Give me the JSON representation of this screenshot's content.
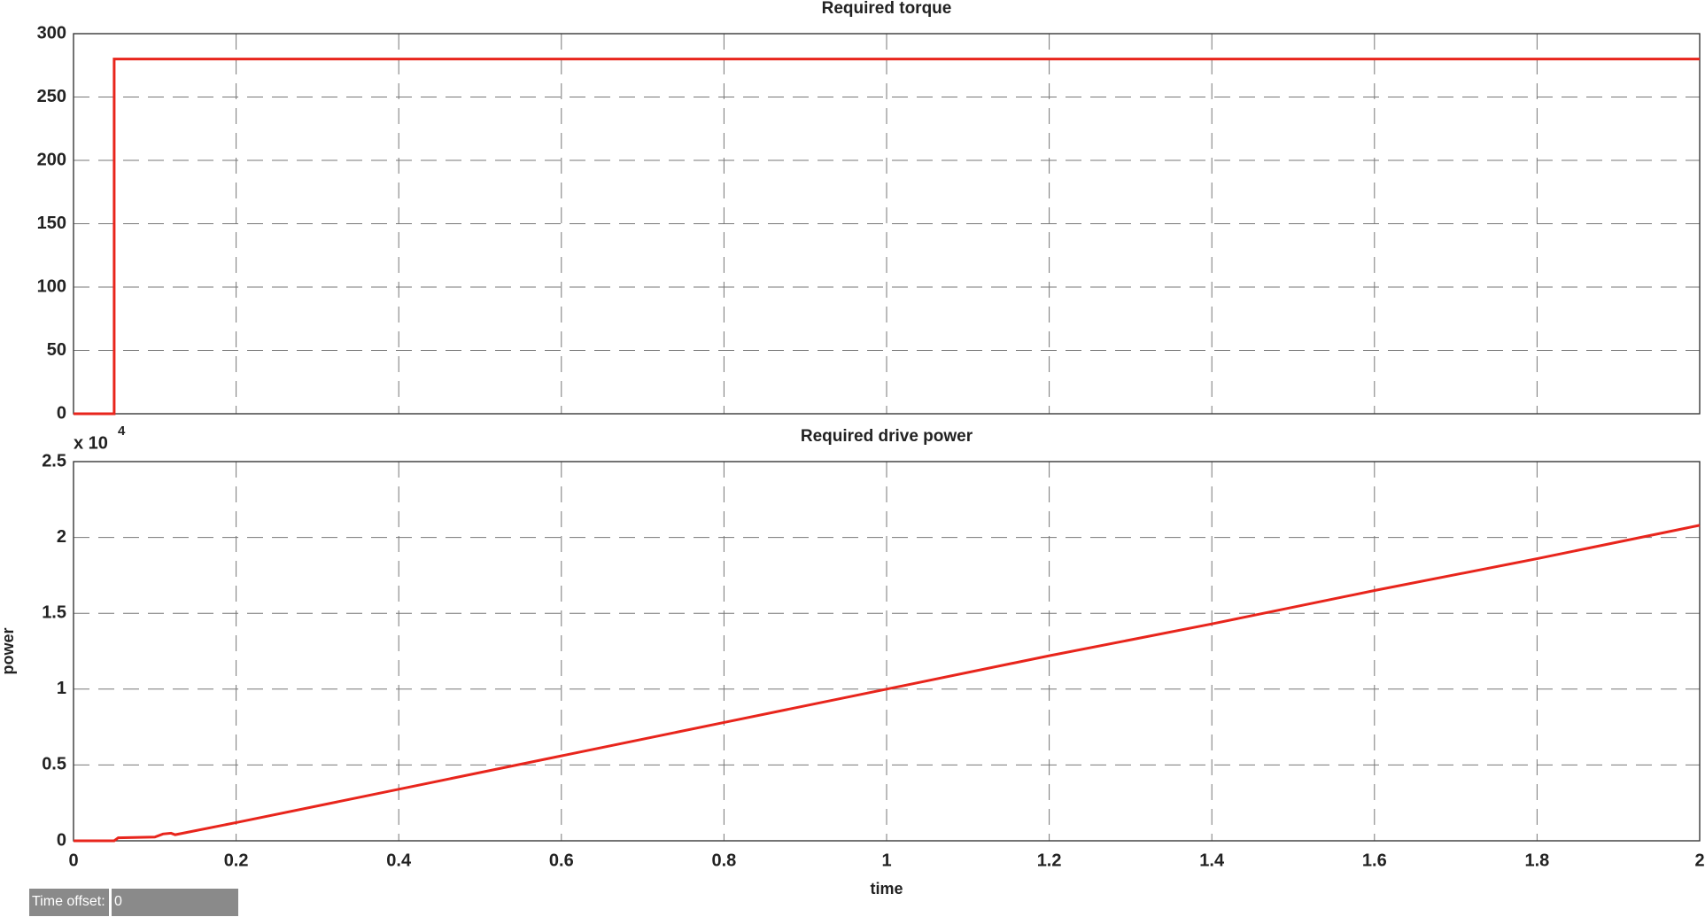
{
  "chart_data": [
    {
      "type": "line",
      "title": "Required torque",
      "x": [
        0,
        0.05,
        0.05,
        2
      ],
      "series": [
        {
          "name": "torque",
          "color": "#e8251c",
          "values": [
            0,
            0,
            280,
            280
          ]
        }
      ],
      "xlim": [
        0,
        2
      ],
      "xticks": [
        0,
        0.2,
        0.4,
        0.6,
        0.8,
        1,
        1.2,
        1.4,
        1.6,
        1.8,
        2
      ],
      "ylim": [
        0,
        300
      ],
      "yticks": [
        0,
        50,
        100,
        150,
        200,
        250,
        300
      ],
      "grid": true
    },
    {
      "type": "line",
      "title": "Required drive power",
      "xlabel": "time",
      "ylabel": "power",
      "y_exponent_label": "x 10",
      "y_exponent": "4",
      "x": [
        0,
        0.05,
        0.055,
        0.1,
        0.11,
        0.12,
        0.125,
        0.2,
        0.4,
        0.6,
        0.8,
        1,
        1.2,
        1.4,
        1.6,
        1.8,
        2
      ],
      "series": [
        {
          "name": "power",
          "color": "#e8251c",
          "values": [
            0,
            0,
            200,
            250,
            450,
            500,
            400,
            1200,
            3400,
            5600,
            7800,
            10000,
            12200,
            14300,
            16500,
            18600,
            20800
          ]
        }
      ],
      "xlim": [
        0,
        2
      ],
      "xticks": [
        0,
        0.2,
        0.4,
        0.6,
        0.8,
        1,
        1.2,
        1.4,
        1.6,
        1.8,
        2
      ],
      "ylim": [
        0,
        25000
      ],
      "yticks": [
        0,
        {
          "value": 5000,
          "label": "0.5"
        },
        {
          "value": 10000,
          "label": "1"
        },
        {
          "value": 15000,
          "label": "1.5"
        },
        {
          "value": 20000,
          "label": "2"
        },
        {
          "value": 25000,
          "label": "2.5"
        }
      ],
      "grid": true
    }
  ],
  "time_offset": {
    "label": "Time offset:",
    "value": "0"
  }
}
